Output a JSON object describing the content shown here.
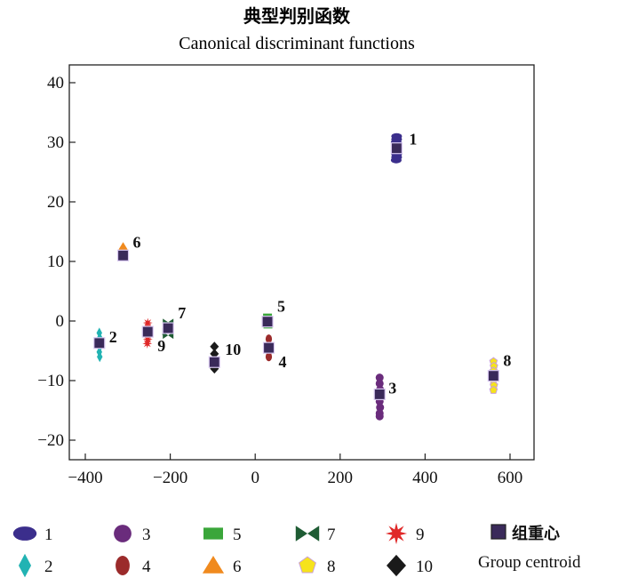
{
  "chart_data": {
    "type": "scatter",
    "title": "典型判别函数",
    "subtitle": "Canonical discriminant functions",
    "xlabel": "",
    "ylabel": "",
    "xlim": [
      -420,
      660
    ],
    "ylim": [
      -23,
      43
    ],
    "x_ticks": [
      -400,
      -200,
      0,
      200,
      400,
      600
    ],
    "x_tick_labels": [
      "−400",
      "−200",
      "0",
      "200",
      "400",
      "600"
    ],
    "y_ticks": [
      -20,
      -10,
      0,
      10,
      20,
      30,
      40
    ],
    "y_tick_labels": [
      "−20",
      "−10",
      "0",
      "10",
      "20",
      "30",
      "40"
    ],
    "series": [
      {
        "name": "1",
        "color": "#3b2e8c",
        "marker": "ellipse",
        "values": [
          [
            333,
            31
          ],
          [
            333,
            30.5
          ],
          [
            332,
            30
          ],
          [
            333,
            29.5
          ],
          [
            334,
            29
          ],
          [
            332,
            28.5
          ],
          [
            333,
            28
          ],
          [
            333,
            27.5
          ],
          [
            332,
            27
          ]
        ],
        "centroid": [
          333,
          29
        ],
        "label": "1"
      },
      {
        "name": "2",
        "color": "#22b3b3",
        "marker": "diamond",
        "values": [
          [
            -367,
            -2
          ],
          [
            -366,
            -2.8
          ],
          [
            -367,
            -3.6
          ],
          [
            -366,
            -4.4
          ],
          [
            -367,
            -5.2
          ],
          [
            -366,
            -6
          ]
        ],
        "centroid": [
          -367,
          -3.7
        ],
        "label": "2"
      },
      {
        "name": "3",
        "color": "#6a2c7c",
        "marker": "circle",
        "values": [
          [
            293,
            -9.5
          ],
          [
            293,
            -10.5
          ],
          [
            294,
            -11.5
          ],
          [
            292,
            -12.5
          ],
          [
            293,
            -13.5
          ],
          [
            294,
            -14.5
          ],
          [
            293,
            -15.5
          ],
          [
            293,
            -16
          ]
        ],
        "centroid": [
          293,
          -12.3
        ],
        "label": "3"
      },
      {
        "name": "4",
        "color": "#9b2b2b",
        "marker": "oval",
        "values": [
          [
            32,
            -3
          ],
          [
            32,
            -4
          ],
          [
            33,
            -5
          ],
          [
            32,
            -6
          ]
        ],
        "centroid": [
          32,
          -4.5
        ],
        "label": "4"
      },
      {
        "name": "5",
        "color": "#3aa63a",
        "marker": "rect",
        "values": [
          [
            29,
            0.8
          ],
          [
            29,
            0
          ],
          [
            30,
            -0.8
          ]
        ],
        "centroid": [
          29,
          -0.1
        ],
        "label": "5"
      },
      {
        "name": "6",
        "color": "#f08a1e",
        "marker": "triangle",
        "values": [
          [
            -311,
            12.5
          ],
          [
            -311,
            11.5
          ],
          [
            -311,
            10.8
          ]
        ],
        "centroid": [
          -311,
          11
        ],
        "label": "6"
      },
      {
        "name": "7",
        "color": "#1f5c34",
        "marker": "bowtie",
        "values": [
          [
            -205,
            -0.2
          ],
          [
            -205,
            -1
          ],
          [
            -206,
            -1.8
          ],
          [
            -205,
            -2.4
          ]
        ],
        "centroid": [
          -205,
          -1.2
        ],
        "label": "7"
      },
      {
        "name": "8",
        "color": "#f6e31c",
        "marker": "pentagon",
        "values": [
          [
            561,
            -6.8
          ],
          [
            562,
            -7.6
          ],
          [
            561,
            -8.4
          ],
          [
            562,
            -9.2
          ],
          [
            561,
            -10
          ],
          [
            562,
            -10.8
          ],
          [
            561,
            -11.6
          ]
        ],
        "centroid": [
          561,
          -9.2
        ],
        "label": "8"
      },
      {
        "name": "9",
        "color": "#e02828",
        "marker": "star",
        "values": [
          [
            -253,
            -0.3
          ],
          [
            -253,
            -1
          ],
          [
            -254,
            -1.7
          ],
          [
            -253,
            -2.4
          ],
          [
            -253,
            -3.1
          ],
          [
            -254,
            -3.8
          ]
        ],
        "centroid": [
          -253,
          -1.8
        ],
        "label": "9"
      },
      {
        "name": "10",
        "color": "#1a1a1a",
        "marker": "diamond-black",
        "values": [
          [
            -96,
            -4.3
          ],
          [
            -96,
            -5.5
          ],
          [
            -96,
            -6.5
          ],
          [
            -96,
            -7.2
          ],
          [
            -96,
            -8
          ]
        ],
        "centroid": [
          -96,
          -6.9
        ],
        "label": "10"
      }
    ],
    "legend": {
      "entries": [
        "1",
        "2",
        "3",
        "4",
        "5",
        "6",
        "7",
        "8",
        "9",
        "10"
      ],
      "centroid_label_cn": "组重心",
      "centroid_label_en": "Group centroid",
      "centroid_color": "#3a2a5a",
      "placement": "bottom"
    }
  }
}
